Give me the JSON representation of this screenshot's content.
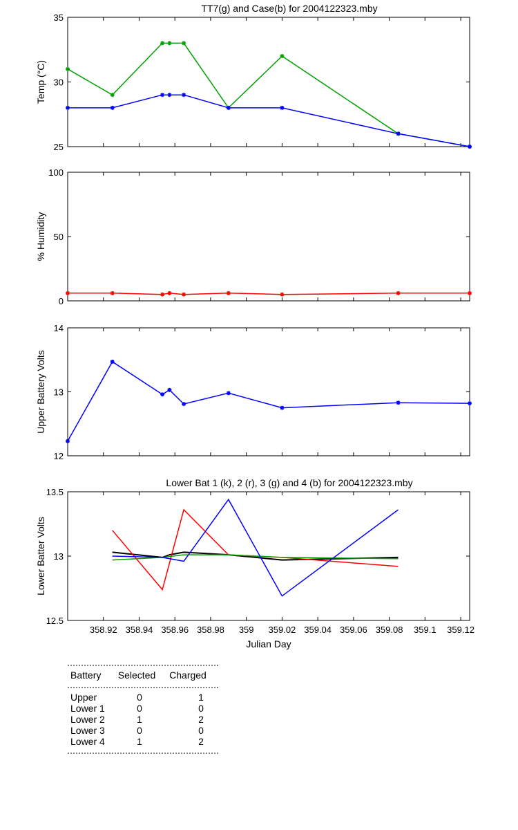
{
  "chart_data": [
    {
      "type": "line",
      "title": "TT7(g) and Case(b) for 2004122323.mby",
      "ylabel": "Temp (°C)",
      "xlabel": "",
      "xlim": [
        358.9,
        359.125
      ],
      "ylim": [
        25,
        35
      ],
      "yticks": [
        25,
        30,
        35
      ],
      "show_xticklabels": false,
      "markers": true,
      "series": [
        {
          "color": "#00a000",
          "x": [
            358.9,
            358.925,
            358.953,
            358.957,
            358.965,
            358.99,
            359.02,
            359.085,
            359.125
          ],
          "values": [
            31,
            29,
            33,
            33,
            33,
            28,
            32,
            26,
            25
          ]
        },
        {
          "color": "#0000ff",
          "x": [
            358.9,
            358.925,
            358.953,
            358.957,
            358.965,
            358.99,
            359.02,
            359.085,
            359.125
          ],
          "values": [
            28,
            28,
            29,
            29,
            29,
            28,
            28,
            26,
            25
          ]
        }
      ]
    },
    {
      "type": "line",
      "title": "",
      "ylabel": "% Humidity",
      "xlabel": "",
      "xlim": [
        358.9,
        359.125
      ],
      "ylim": [
        0,
        100
      ],
      "yticks": [
        0,
        50,
        100
      ],
      "show_xticklabels": false,
      "markers": true,
      "series": [
        {
          "color": "#ff0000",
          "x": [
            358.9,
            358.925,
            358.953,
            358.957,
            358.965,
            358.99,
            359.02,
            359.085,
            359.125
          ],
          "values": [
            6,
            6,
            5,
            6,
            5,
            6,
            5,
            6,
            6
          ]
        }
      ]
    },
    {
      "type": "line",
      "title": "",
      "ylabel": "Upper Battery Volts",
      "xlabel": "",
      "xlim": [
        358.9,
        359.125
      ],
      "ylim": [
        12,
        14
      ],
      "yticks": [
        12,
        13,
        14
      ],
      "show_xticklabels": false,
      "markers": true,
      "series": [
        {
          "color": "#0000ff",
          "x": [
            358.9,
            358.925,
            358.953,
            358.957,
            358.965,
            358.99,
            359.02,
            359.085,
            359.125
          ],
          "values": [
            12.23,
            13.47,
            12.96,
            13.03,
            12.81,
            12.98,
            12.75,
            12.83,
            12.82
          ]
        }
      ]
    },
    {
      "type": "line",
      "title": "Lower Bat 1 (k), 2 (r), 3 (g) and 4 (b) for 2004122323.mby",
      "ylabel": "Lower Batter Volts",
      "xlabel": "Julian Day",
      "xlim": [
        358.9,
        359.125
      ],
      "ylim": [
        12.5,
        13.5
      ],
      "yticks": [
        12.5,
        13,
        13.5
      ],
      "yticklabels": [
        "12.5",
        "13",
        "13.5"
      ],
      "xticks": [
        358.92,
        358.94,
        358.96,
        358.98,
        359,
        359.02,
        359.04,
        359.06,
        359.08,
        359.1,
        359.12
      ],
      "xticklabels": [
        "358.92",
        "358.94",
        "358.96",
        "358.98",
        "359",
        "359.02",
        "359.04",
        "359.06",
        "359.08",
        "359.1",
        "359.12"
      ],
      "show_xticklabels": true,
      "markers": false,
      "series": [
        {
          "color": "#000000",
          "x": [
            358.925,
            358.953,
            358.957,
            358.965,
            358.99,
            359.02,
            359.085
          ],
          "values": [
            13.03,
            12.99,
            13.01,
            13.03,
            13.01,
            12.97,
            12.99
          ]
        },
        {
          "color": "#ff0000",
          "x": [
            358.925,
            358.953,
            358.965,
            358.99,
            359.02,
            359.085
          ],
          "values": [
            13.2,
            12.74,
            13.36,
            13.01,
            12.99,
            12.92
          ]
        },
        {
          "color": "#00a000",
          "x": [
            358.925,
            358.953,
            358.965,
            358.99,
            359.02,
            359.085
          ],
          "values": [
            12.97,
            12.99,
            13.01,
            13.01,
            12.99,
            12.98
          ]
        },
        {
          "color": "#0000ff",
          "x": [
            358.925,
            358.953,
            358.965,
            358.99,
            359.02,
            359.085
          ],
          "values": [
            13.0,
            12.99,
            12.96,
            13.44,
            12.69,
            13.36
          ]
        }
      ]
    }
  ],
  "table": {
    "headers": [
      "Battery",
      "Selected",
      "Charged"
    ],
    "rows": [
      [
        "Upper",
        "0",
        "1"
      ],
      [
        "Lower 1",
        "0",
        "0"
      ],
      [
        "Lower 2",
        "1",
        "2"
      ],
      [
        "Lower 3",
        "0",
        "0"
      ],
      [
        "Lower 4",
        "1",
        "2"
      ]
    ]
  }
}
